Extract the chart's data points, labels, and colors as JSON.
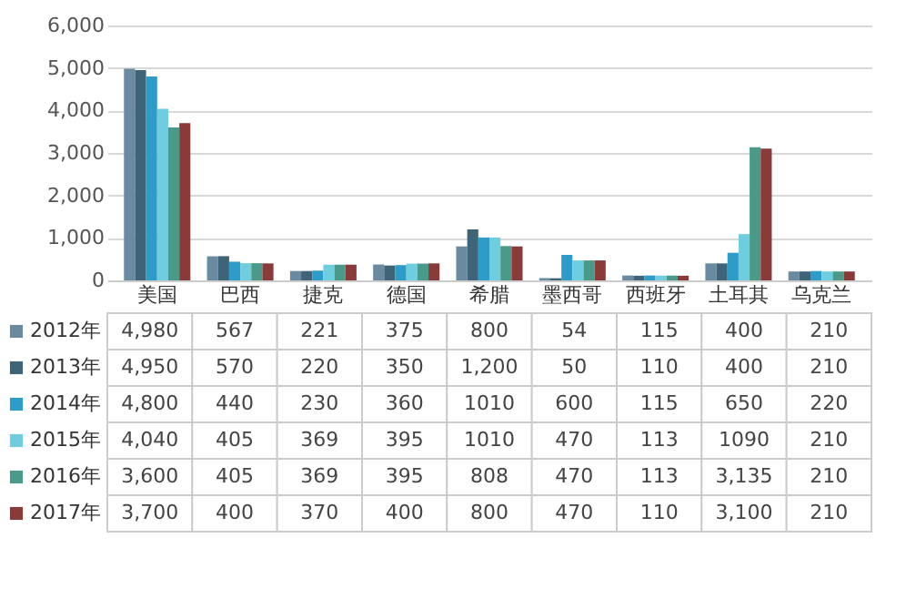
{
  "chart_data": {
    "type": "bar",
    "categories": [
      "美国",
      "巴西",
      "捷克",
      "德国",
      "希腊",
      "墨西哥",
      "西班牙",
      "土耳其",
      "乌克兰"
    ],
    "series": [
      {
        "name": "2012年",
        "color": "#6a8aa0",
        "values": [
          4980,
          567,
          221,
          375,
          800,
          54,
          115,
          400,
          210
        ],
        "value_labels": [
          "4,980",
          "567",
          "221",
          "375",
          "800",
          "54",
          "115",
          "400",
          "210"
        ]
      },
      {
        "name": "2013年",
        "color": "#3f6478",
        "values": [
          4950,
          570,
          220,
          350,
          1200,
          50,
          110,
          400,
          210
        ],
        "value_labels": [
          "4,950",
          "570",
          "220",
          "350",
          "1,200",
          "50",
          "110",
          "400",
          "210"
        ]
      },
      {
        "name": "2014年",
        "color": "#2e9cc8",
        "values": [
          4800,
          440,
          230,
          360,
          1010,
          600,
          115,
          650,
          220
        ],
        "value_labels": [
          "4,800",
          "440",
          "230",
          "360",
          "1010",
          "600",
          "115",
          "650",
          "220"
        ]
      },
      {
        "name": "2015年",
        "color": "#6fcde0",
        "values": [
          4040,
          405,
          369,
          395,
          1010,
          470,
          113,
          1090,
          210
        ],
        "value_labels": [
          "4,040",
          "405",
          "369",
          "395",
          "1010",
          "470",
          "113",
          "1090",
          "210"
        ]
      },
      {
        "name": "2016年",
        "color": "#4a9a8a",
        "values": [
          3600,
          405,
          369,
          395,
          808,
          470,
          113,
          3135,
          210
        ],
        "value_labels": [
          "3,600",
          "405",
          "369",
          "395",
          "808",
          "470",
          "113",
          "3,135",
          "210"
        ]
      },
      {
        "name": "2017年",
        "color": "#8b3a3a",
        "values": [
          3700,
          400,
          370,
          400,
          800,
          470,
          110,
          3100,
          210
        ],
        "value_labels": [
          "3,700",
          "400",
          "370",
          "400",
          "800",
          "470",
          "110",
          "3,100",
          "210"
        ]
      }
    ],
    "ylim": [
      0,
      6000
    ],
    "yticks": [
      0,
      {
        "value": 1000,
        "label": "1,000"
      },
      {
        "value": 2000,
        "label": "2,000"
      },
      {
        "value": 3000,
        "label": "3,000"
      },
      {
        "value": 4000,
        "label": "4,000"
      },
      {
        "value": 5000,
        "label": "5,000"
      },
      {
        "value": 6000,
        "label": "6,000"
      }
    ],
    "grid": "y",
    "legend": "left"
  }
}
